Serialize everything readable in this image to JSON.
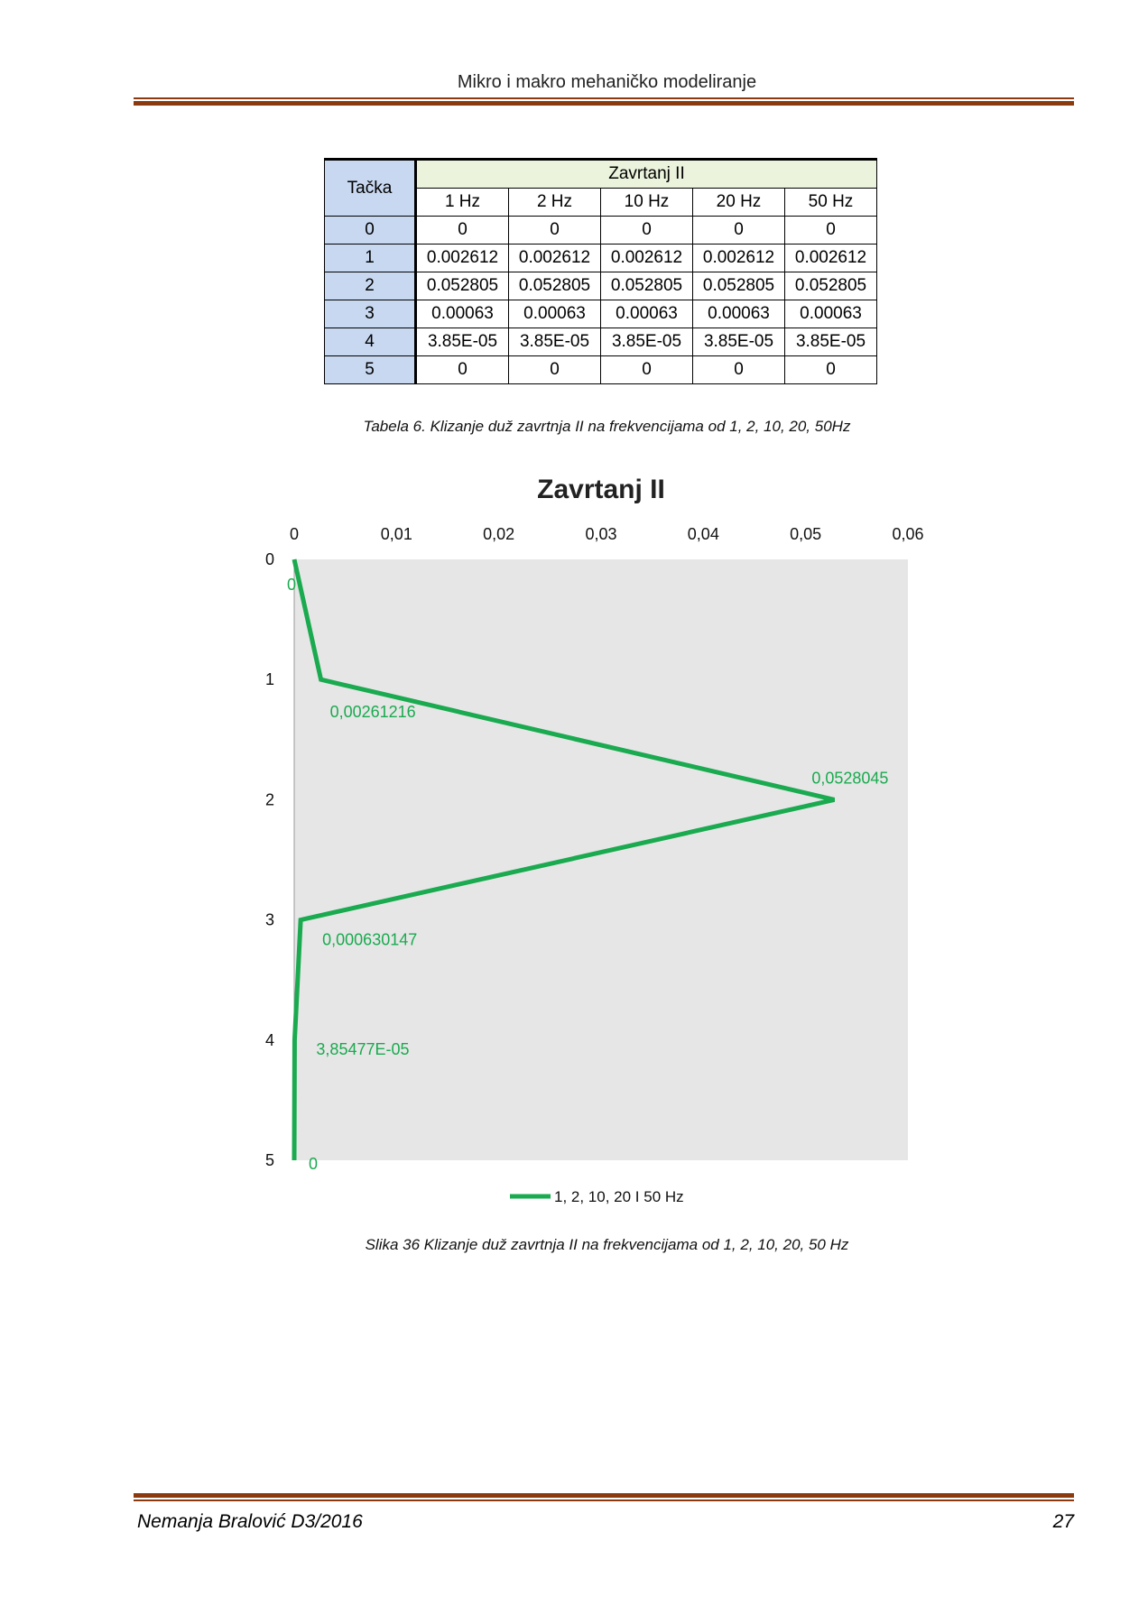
{
  "header": {
    "title": "Mikro i makro mehaničko modeliranje"
  },
  "table": {
    "row_header": "Tačka",
    "group_header": "Zavrtanj II",
    "columns": [
      "1 Hz",
      "2 Hz",
      "10 Hz",
      "20 Hz",
      "50 Hz"
    ],
    "rows": [
      {
        "point": "0",
        "values": [
          "0",
          "0",
          "0",
          "0",
          "0"
        ]
      },
      {
        "point": "1",
        "values": [
          "0.002612",
          "0.002612",
          "0.002612",
          "0.002612",
          "0.002612"
        ]
      },
      {
        "point": "2",
        "values": [
          "0.052805",
          "0.052805",
          "0.052805",
          "0.052805",
          "0.052805"
        ]
      },
      {
        "point": "3",
        "values": [
          "0.00063",
          "0.00063",
          "0.00063",
          "0.00063",
          "0.00063"
        ]
      },
      {
        "point": "4",
        "values": [
          "3.85E-05",
          "3.85E-05",
          "3.85E-05",
          "3.85E-05",
          "3.85E-05"
        ]
      },
      {
        "point": "5",
        "values": [
          "0",
          "0",
          "0",
          "0",
          "0"
        ]
      }
    ],
    "caption": "Tabela 6. Klizanje duž zavrtnja II na frekvencijama od 1, 2, 10, 20, 50Hz"
  },
  "chart_data": {
    "type": "line",
    "title": "Zavrtanj II",
    "xlim": [
      0,
      0.06
    ],
    "ylim": [
      0,
      5
    ],
    "y_inverted": true,
    "x_axis_position": "top",
    "x_ticks": [
      "0",
      "0,01",
      "0,02",
      "0,03",
      "0,04",
      "0,05",
      "0,06"
    ],
    "y_ticks": [
      "0",
      "1",
      "2",
      "3",
      "4",
      "5"
    ],
    "series": [
      {
        "name": "1, 2, 10, 20 I 50 Hz",
        "color": "#1aaa4f",
        "points": [
          {
            "x": 0,
            "y": 0,
            "label": "0"
          },
          {
            "x": 0.00261216,
            "y": 1,
            "label": "0,00261216"
          },
          {
            "x": 0.0528045,
            "y": 2,
            "label": "0,0528045"
          },
          {
            "x": 0.000630147,
            "y": 3,
            "label": "0,000630147"
          },
          {
            "x": 3.85477e-05,
            "y": 4,
            "label": "3,85477E-05"
          },
          {
            "x": 0,
            "y": 5,
            "label": "0"
          }
        ]
      }
    ],
    "legend": "bottom",
    "plot_background": "#e6e6e6",
    "caption": "Slika 36  Klizanje duž zavrtnja II na frekvencijama od 1, 2, 10, 20, 50 Hz"
  },
  "footer": {
    "author": "Nemanja Bralović D3/2016",
    "page": "27"
  }
}
